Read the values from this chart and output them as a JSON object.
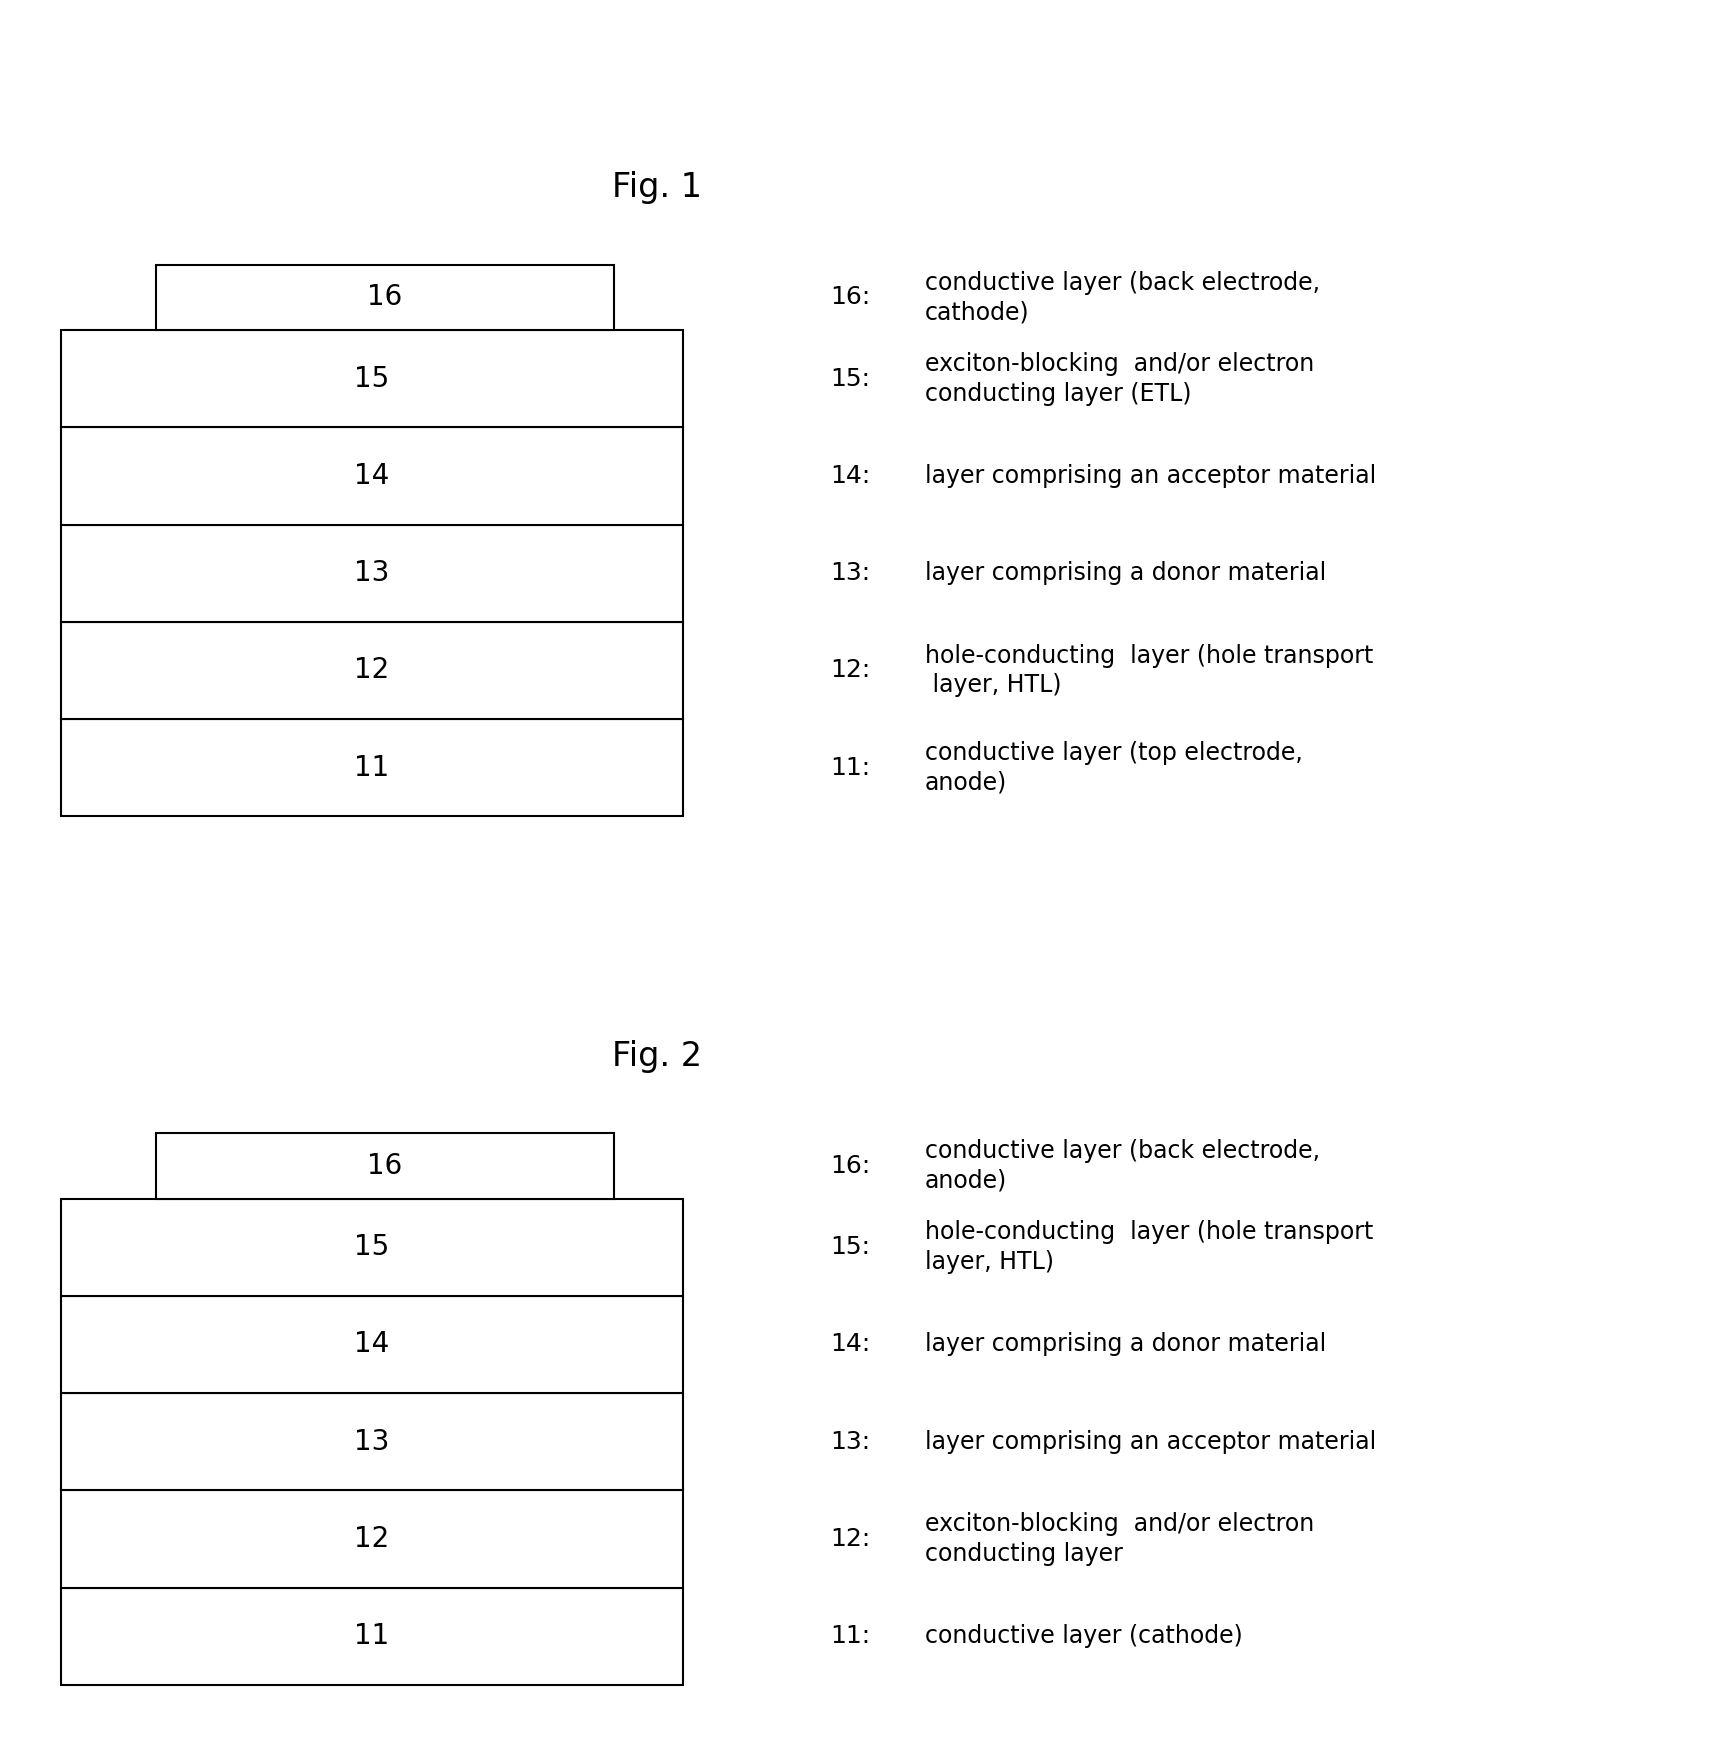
{
  "fig_title_1": "Fig. 1",
  "fig_title_2": "Fig. 2",
  "background_color": "#ffffff",
  "box_facecolor": "#ffffff",
  "box_edgecolor": "#000000",
  "text_color": "#000000",
  "fig1_layers": [
    {
      "num": "16",
      "label": "16:",
      "desc": "conductive layer (back electrode,\ncathode)",
      "is_top": true
    },
    {
      "num": "15",
      "label": "15:",
      "desc": "exciton-blocking  and/or electron\nconducting layer (ETL)",
      "is_top": false
    },
    {
      "num": "14",
      "label": "14:",
      "desc": "layer comprising an acceptor material",
      "is_top": false
    },
    {
      "num": "13",
      "label": "13:",
      "desc": "layer comprising a donor material",
      "is_top": false
    },
    {
      "num": "12",
      "label": "12:",
      "desc": "hole-conducting  layer (hole transport\n layer, HTL)",
      "is_top": false
    },
    {
      "num": "11",
      "label": "11:",
      "desc": "conductive layer (top electrode,\nanode)",
      "is_top": false
    }
  ],
  "fig2_layers": [
    {
      "num": "16",
      "label": "16:",
      "desc": "conductive layer (back electrode,\nanode)",
      "is_top": true
    },
    {
      "num": "15",
      "label": "15:",
      "desc": "hole-conducting  layer (hole transport\nlayer, HTL)",
      "is_top": false
    },
    {
      "num": "14",
      "label": "14:",
      "desc": "layer comprising a donor material",
      "is_top": false
    },
    {
      "num": "13",
      "label": "13:",
      "desc": "layer comprising an acceptor material",
      "is_top": false
    },
    {
      "num": "12",
      "label": "12:",
      "desc": "exciton-blocking  and/or electron\nconducting layer",
      "is_top": false
    },
    {
      "num": "11",
      "label": "11:",
      "desc": "conductive layer (cathode)",
      "is_top": false
    }
  ]
}
